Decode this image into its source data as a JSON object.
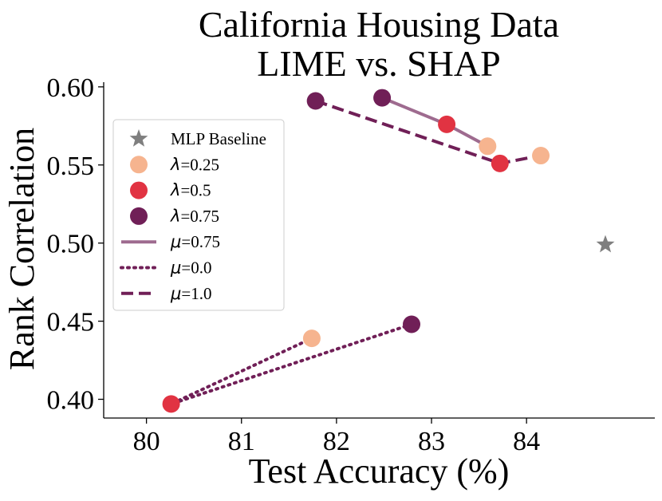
{
  "chart_data": {
    "type": "scatter",
    "title_lines": [
      "California Housing Data",
      "LIME vs. SHAP"
    ],
    "xlabel": "Test Accuracy (%)",
    "ylabel": "Rank Correlation",
    "xlim": [
      79.55,
      85.35
    ],
    "ylim": [
      0.388,
      0.603
    ],
    "xticks": [
      "80",
      "81",
      "82",
      "83",
      "84"
    ],
    "yticks": [
      "0.40",
      "0.45",
      "0.50",
      "0.55",
      "0.60"
    ],
    "colors": {
      "baseline": "#7f7f7f",
      "lambda_0_25": "#f6b48f",
      "lambda_0_5": "#e13342",
      "lambda_0_75": "#701f57",
      "mu_0_75": "#9e6b8f",
      "mu_0_0": "#701f57",
      "mu_1_0": "#701f57"
    },
    "baseline": {
      "name": "MLP Baseline",
      "x": 84.83,
      "y": 0.499
    },
    "series": [
      {
        "name": "λ=0.25",
        "key": "lambda_0_25",
        "x": [
          81.74,
          83.59,
          84.15
        ],
        "y": [
          0.439,
          0.562,
          0.556
        ]
      },
      {
        "name": "λ=0.5",
        "key": "lambda_0_5",
        "x": [
          80.26,
          83.16,
          83.72
        ],
        "y": [
          0.397,
          0.576,
          0.551
        ]
      },
      {
        "name": "λ=0.75",
        "key": "lambda_0_75",
        "x": [
          82.79,
          82.48,
          81.78
        ],
        "y": [
          0.448,
          0.593,
          0.591
        ]
      }
    ],
    "lines": [
      {
        "name": "μ=0.75",
        "key": "mu_0_75",
        "style": "solid",
        "points": [
          [
            82.48,
            0.593
          ],
          [
            83.16,
            0.576
          ],
          [
            83.59,
            0.562
          ]
        ]
      },
      {
        "name": "μ=0.0",
        "key": "mu_0_0",
        "style": "dotted",
        "points": [
          [
            82.79,
            0.448
          ],
          [
            80.26,
            0.397
          ],
          [
            81.74,
            0.439
          ]
        ]
      },
      {
        "name": "μ=1.0",
        "key": "mu_1_0",
        "style": "dashed",
        "points": [
          [
            81.78,
            0.591
          ],
          [
            83.72,
            0.551
          ],
          [
            84.15,
            0.556
          ]
        ]
      }
    ],
    "legend": {
      "position": "upper-left",
      "entries": [
        {
          "kind": "star",
          "key": "baseline",
          "symbol": "",
          "value": "MLP Baseline"
        },
        {
          "kind": "marker",
          "key": "lambda_0_25",
          "symbol": "λ",
          "value": "=0.25"
        },
        {
          "kind": "marker",
          "key": "lambda_0_5",
          "symbol": "λ",
          "value": "=0.5"
        },
        {
          "kind": "marker",
          "key": "lambda_0_75",
          "symbol": "λ",
          "value": "=0.75"
        },
        {
          "kind": "solid",
          "key": "mu_0_75",
          "symbol": "μ",
          "value": "=0.75"
        },
        {
          "kind": "dotted",
          "key": "mu_0_0",
          "symbol": "μ",
          "value": "=0.0"
        },
        {
          "kind": "dashed",
          "key": "mu_1_0",
          "symbol": "μ",
          "value": "=1.0"
        }
      ]
    }
  }
}
